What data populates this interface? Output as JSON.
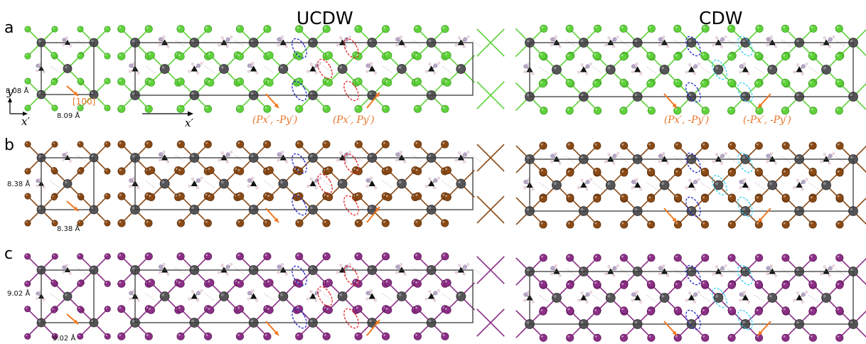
{
  "titles": {
    "ucdw": "UCDW",
    "cdw": "CDW"
  },
  "panels": [
    {
      "label": "a",
      "halide_color": "#5fd23a",
      "halide_stroke": "#3a9a20",
      "bond_color": "#5fd23a",
      "lattice_y": "8.08 Å",
      "lattice_x": "8.09 Å"
    },
    {
      "label": "b",
      "halide_color": "#8a4a16",
      "halide_stroke": "#5c2e08",
      "bond_color": "#8a4a16",
      "lattice_y": "8.38 Å",
      "lattice_x": "8.38 Å"
    },
    {
      "label": "c",
      "halide_color": "#8c2f86",
      "halide_stroke": "#5a1556",
      "bond_color": "#8c2f86",
      "lattice_y": "9.02 Å",
      "lattice_x": "9.02 Å"
    }
  ],
  "axes": {
    "y_prime": "y′",
    "x_prime": "x′",
    "x_prime_super": "x′",
    "miller_index": "[100]"
  },
  "polarizations": {
    "ucdw_left": "(Px′, -Py′)",
    "ucdw_right": "(Px′, Py′)",
    "cdw_left": "(Px′, -Py′)",
    "cdw_right": "(-Px′, -Py′)"
  },
  "colors": {
    "metal": "#555558",
    "nitrogen": "#b7a7c8",
    "carbon": "#111111",
    "hydrogen": "#f2dde8",
    "arrow": "#f07820",
    "ellipse_blue": "#1e22c8",
    "ellipse_red": "#e32020",
    "ellipse_cyan": "#33ccee"
  },
  "icons": [
    "pb-atom",
    "halide-atom",
    "methylammonium-molecule",
    "domain-ellipse",
    "polarization-arrow"
  ]
}
